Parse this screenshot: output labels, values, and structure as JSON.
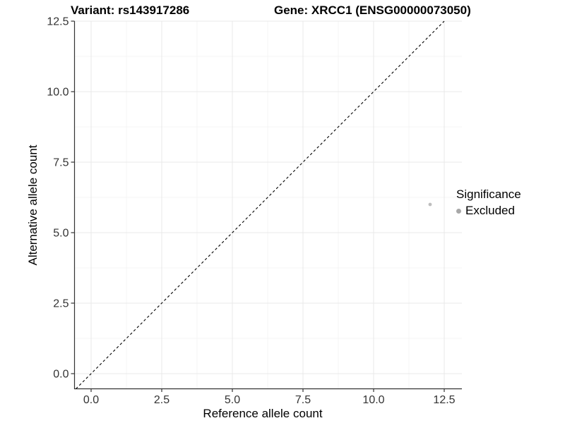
{
  "chart_data": {
    "type": "scatter",
    "titles": {
      "left": "Variant: rs143917286",
      "right": "Gene: XRCC1 (ENSG00000073050)"
    },
    "xlabel": "Reference allele count",
    "ylabel": "Alternative allele count",
    "x_ticks": {
      "values": [
        0,
        2.5,
        5,
        7.5,
        10,
        12.5
      ],
      "labels": [
        "0.0",
        "2.5",
        "5.0",
        "7.5",
        "10.0",
        "12.5"
      ]
    },
    "y_ticks": {
      "values": [
        0,
        2.5,
        5,
        7.5,
        10,
        12.5
      ],
      "labels": [
        "0.0",
        "2.5",
        "5.0",
        "7.5",
        "10.0",
        "12.5"
      ]
    },
    "xlim": [
      -0.54,
      13.12
    ],
    "ylim": [
      -0.54,
      12.55
    ],
    "grid": {
      "major": true,
      "minor": true,
      "legend_position": "right"
    },
    "reference_line": {
      "type": "identity",
      "style": "dashed",
      "color": "#000000"
    },
    "series": [
      {
        "name": "Excluded",
        "color": "#bebebe",
        "points": [
          {
            "x": 12,
            "y": 6
          }
        ]
      }
    ],
    "legend": {
      "title": "Significance",
      "position": "right",
      "entries": [
        {
          "label": "Excluded",
          "color": "#a8a8a8"
        }
      ]
    }
  },
  "colors": {
    "background": "#ffffff",
    "grid_major": "#e9e9e9",
    "grid_minor": "#f4f4f4",
    "axis_line": "#333333",
    "tick_mark": "#333333",
    "tick_label": "#333333",
    "point": "#bebebe"
  }
}
